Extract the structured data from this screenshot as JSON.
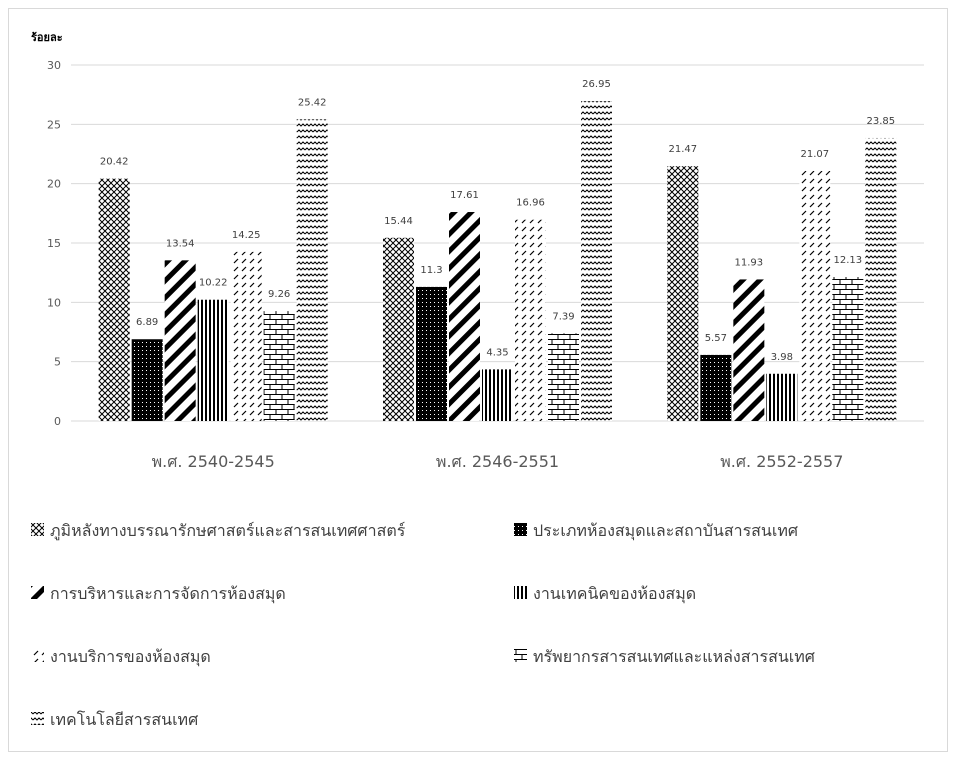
{
  "chart_data": {
    "type": "bar",
    "ylabel": "ร้อยละ",
    "ylim": [
      0,
      30
    ],
    "yticks": [
      0,
      5,
      10,
      15,
      20,
      25,
      30
    ],
    "categories": [
      "พ.ศ. 2540-2545",
      "พ.ศ. 2546-2551",
      "พ.ศ. 2552-2557"
    ],
    "series": [
      {
        "name": "ภูมิหลังทางบรรณารักษศาสตร์และสารสนเทศศาสตร์",
        "values": [
          20.42,
          15.44,
          21.47
        ],
        "labels": [
          "20.42",
          "15.44",
          "21.47"
        ]
      },
      {
        "name": "ประเภทห้องสมุดและสถาบันสารสนเทศ",
        "values": [
          6.89,
          11.3,
          5.57
        ],
        "labels": [
          "6.89",
          "11.3",
          "5.57"
        ]
      },
      {
        "name": "การบริหารและการจัดการห้องสมุด",
        "values": [
          13.54,
          17.61,
          11.93
        ],
        "labels": [
          "13.54",
          "17.61",
          "11.93"
        ]
      },
      {
        "name": "งานเทคนิคของห้องสมุด",
        "values": [
          10.22,
          4.35,
          3.98
        ],
        "labels": [
          "10.22",
          "4.35",
          "3.98"
        ]
      },
      {
        "name": "งานบริการของห้องสมุด",
        "values": [
          14.25,
          16.96,
          21.07
        ],
        "labels": [
          "14.25",
          "16.96",
          "21.07"
        ]
      },
      {
        "name": "ทรัพยากรสารสนเทศและแหล่งสารสนเทศ",
        "values": [
          9.26,
          7.39,
          12.13
        ],
        "labels": [
          "9.26",
          "7.39",
          "12.13"
        ]
      },
      {
        "name": "เทคโนโลยีสารสนเทศ",
        "values": [
          25.42,
          26.95,
          23.85
        ],
        "labels": [
          "25.42",
          "26.95",
          "23.85"
        ]
      }
    ],
    "legend_position": "bottom",
    "grid": true
  }
}
